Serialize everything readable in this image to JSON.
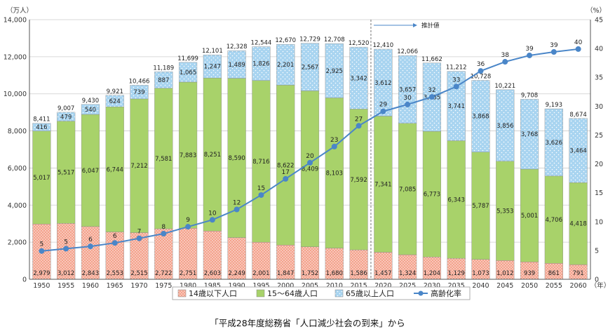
{
  "chart_data": {
    "type": "bar",
    "stacked": true,
    "y_unit_left": "（万人）",
    "y_unit_right": "（%）",
    "x_unit": "（年）",
    "ylim_left": [
      0,
      14000
    ],
    "ylim_right": [
      0,
      45
    ],
    "yticks_left": [
      "0",
      "2,000",
      "4,000",
      "6,000",
      "8,000",
      "10,000",
      "12,000",
      "14,000"
    ],
    "yticks_right": [
      "0",
      "5",
      "10",
      "15",
      "20",
      "25",
      "30",
      "35",
      "40",
      "45"
    ],
    "projection_label": "推計値",
    "projection_start": "2020",
    "categories": [
      "1950",
      "1955",
      "1960",
      "1965",
      "1970",
      "1975",
      "1980",
      "1985",
      "1990",
      "1995",
      "2000",
      "2005",
      "2010",
      "2015",
      "2020",
      "2025",
      "2030",
      "2035",
      "2040",
      "2045",
      "2050",
      "2055",
      "2060"
    ],
    "series": [
      {
        "name": "14歳以下人口",
        "color": "#f4a28c",
        "values": [
          2979,
          3012,
          2843,
          2553,
          2515,
          2722,
          2751,
          2603,
          2249,
          2001,
          1847,
          1752,
          1680,
          1586,
          1457,
          1324,
          1204,
          1129,
          1073,
          1012,
          939,
          861,
          791
        ],
        "labels": [
          "2,979",
          "3,012",
          "2,843",
          "2,553",
          "2,515",
          "2,722",
          "2,751",
          "2,603",
          "2,249",
          "2,001",
          "1,847",
          "1,752",
          "1,680",
          "1,586",
          "1,457",
          "1,324",
          "1,204",
          "1,129",
          "1,073",
          "1,012",
          "939",
          "861",
          "791"
        ]
      },
      {
        "name": "15～64歳人口",
        "color": "#a8d26a",
        "values": [
          5017,
          5517,
          6047,
          6744,
          7212,
          7581,
          7883,
          8251,
          8590,
          8716,
          8622,
          8409,
          8103,
          7592,
          7341,
          7085,
          6773,
          6343,
          5787,
          5353,
          5001,
          4706,
          4418
        ],
        "labels": [
          "5,017",
          "5,517",
          "6,047",
          "6,744",
          "7,212",
          "7,581",
          "7,883",
          "8,251",
          "8,590",
          "8,716",
          "8,622",
          "8,409",
          "8,103",
          "7,592",
          "7,341",
          "7,085",
          "6,773",
          "6,343",
          "5,787",
          "5,353",
          "5,001",
          "4,706",
          "4,418"
        ]
      },
      {
        "name": "65歳以上人口",
        "color": "#a8d4f0",
        "values": [
          416,
          479,
          540,
          624,
          739,
          887,
          1065,
          1247,
          1489,
          1826,
          2201,
          2567,
          2925,
          3342,
          3612,
          3657,
          3685,
          3741,
          3868,
          3856,
          3768,
          3626,
          3464
        ],
        "labels": [
          "416",
          "479",
          "540",
          "624",
          "739",
          "887",
          "1,065",
          "1,247",
          "1,489",
          "1,826",
          "2,201",
          "2,567",
          "2,925",
          "3,342",
          "3,612",
          "3,657",
          "3,685",
          "3,741",
          "3,868",
          "3,856",
          "3,768",
          "3,626",
          "3,464"
        ]
      }
    ],
    "totals": [
      "8,411",
      "9,007",
      "9,430",
      "9,921",
      "10,466",
      "11,189",
      "11,699",
      "12,101",
      "12,328",
      "12,544",
      "12,670",
      "12,729",
      "12,708",
      "12,520",
      "12,410",
      "12,066",
      "11,662",
      "11,212",
      "10,728",
      "10,221",
      "9,708",
      "9,193",
      "8,674"
    ],
    "line": {
      "name": "高齢化率",
      "color": "#4a86c8",
      "values": [
        4.9,
        5.3,
        5.7,
        6.3,
        7.1,
        7.9,
        9.1,
        10.3,
        12.1,
        14.6,
        17.4,
        20.2,
        23.0,
        26.6,
        29.1,
        30.3,
        31.6,
        33.4,
        36.1,
        37.7,
        38.8,
        39.4,
        39.9
      ],
      "labels": [
        "5",
        "5",
        "6",
        "6",
        "7",
        "8",
        "9",
        "10",
        "12",
        "15",
        "17",
        "20",
        "23",
        "27",
        "29",
        "30",
        "32",
        "33",
        "36",
        "38",
        "39",
        "39",
        "40"
      ]
    }
  },
  "caption": "「平成28年度総務省「人口減少社会の到来」から"
}
